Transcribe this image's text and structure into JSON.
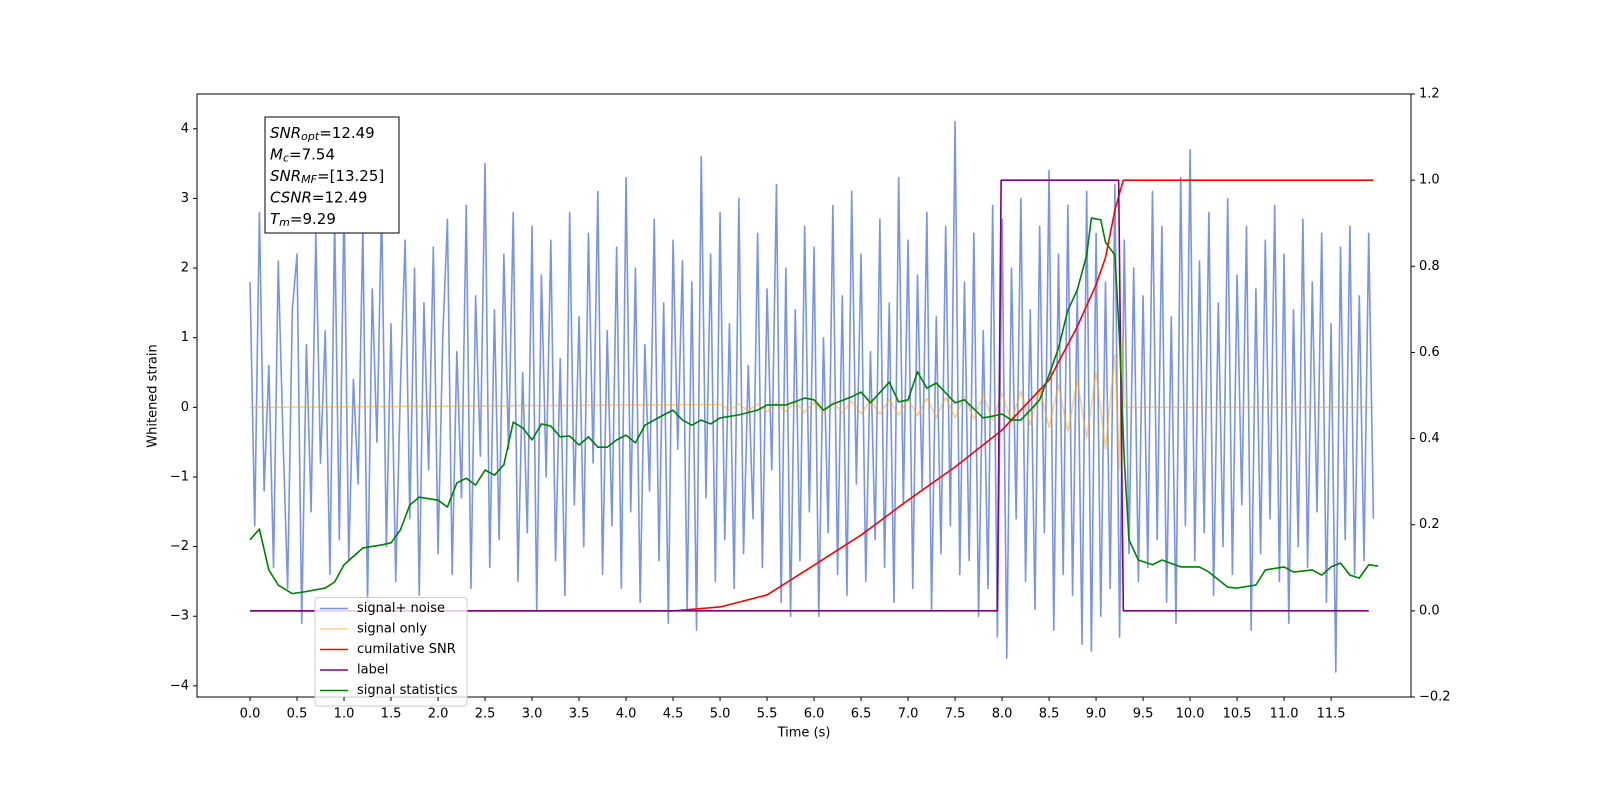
{
  "chart_data": {
    "type": "line",
    "xlabel": "Time (s)",
    "ylabel": "Whitened strain",
    "xlim": [
      -0.564,
      12.35
    ],
    "ylim": [
      -4.16,
      4.5
    ],
    "y2lim": [
      -0.2,
      1.2
    ],
    "xticks": [
      {
        "value": 0,
        "label": "0.0"
      },
      0.5,
      {
        "value": 1,
        "label": "1.0"
      },
      1.5,
      {
        "value": 2,
        "label": "2.0"
      },
      2.5,
      {
        "value": 3,
        "label": "3.0"
      },
      3.5,
      {
        "value": 4,
        "label": "4.0"
      },
      4.5,
      {
        "value": 5,
        "label": "5.0"
      },
      5.5,
      {
        "value": 6,
        "label": "6.0"
      },
      6.5,
      {
        "value": 7,
        "label": "7.0"
      },
      7.5,
      {
        "value": 8,
        "label": "8.0"
      },
      8.5,
      {
        "value": 9,
        "label": "9.0"
      },
      9.5,
      {
        "value": 10,
        "label": "10.0"
      },
      10.5,
      {
        "value": 11,
        "label": "11.0"
      },
      11.5
    ],
    "yticks": [
      {
        "value": -4,
        "label": "−4"
      },
      {
        "value": -3,
        "label": "−3"
      },
      {
        "value": -2,
        "label": "−2"
      },
      {
        "value": -1,
        "label": "−1"
      },
      0,
      1,
      2,
      3,
      4
    ],
    "y2ticks": [
      {
        "value": -0.2,
        "label": "−0.2"
      },
      {
        "value": 0,
        "label": "0.0"
      },
      0.2,
      0.4,
      0.6,
      0.8,
      {
        "value": 1,
        "label": "1.0"
      },
      1.2
    ],
    "legend_loc": "lower left",
    "annotation": [
      {
        "symbol": "SNR",
        "subscript": "opt",
        "text": "=12.49"
      },
      {
        "symbol": "M",
        "subscript": "c",
        "text": "=7.54"
      },
      {
        "symbol": "SNR",
        "subscript": "MF",
        "text": "=[13.25]"
      },
      {
        "symbol": "CSNR",
        "text": "=12.49"
      },
      {
        "symbol": "T",
        "subscript": "m",
        "text": "=9.29"
      }
    ],
    "series": [
      {
        "name": "signal+ noise",
        "color": "#7893e8",
        "opacity": 1,
        "x": [
          0,
          0.05,
          0.1,
          0.15,
          0.2,
          0.25,
          0.3,
          0.35,
          0.4,
          0.45,
          0.5,
          0.55,
          0.6,
          0.65,
          0.7,
          0.75,
          0.8,
          0.85,
          0.9,
          0.95,
          1,
          1.05,
          1.1,
          1.15,
          1.2,
          1.25,
          1.3,
          1.35,
          1.4,
          1.45,
          1.5,
          1.55,
          1.6,
          1.65,
          1.7,
          1.75,
          1.8,
          1.85,
          1.9,
          1.95,
          2,
          2.05,
          2.1,
          2.15,
          2.2,
          2.25,
          2.3,
          2.35,
          2.4,
          2.45,
          2.5,
          2.55,
          2.6,
          2.65,
          2.7,
          2.75,
          2.8,
          2.85,
          2.9,
          2.95,
          3,
          3.05,
          3.1,
          3.15,
          3.2,
          3.25,
          3.3,
          3.35,
          3.4,
          3.45,
          3.5,
          3.55,
          3.6,
          3.65,
          3.7,
          3.75,
          3.8,
          3.85,
          3.9,
          3.95,
          4,
          4.05,
          4.1,
          4.15,
          4.2,
          4.25,
          4.3,
          4.35,
          4.4,
          4.45,
          4.5,
          4.55,
          4.6,
          4.65,
          4.7,
          4.75,
          4.8,
          4.85,
          4.9,
          4.95,
          5,
          5.05,
          5.1,
          5.15,
          5.2,
          5.25,
          5.3,
          5.35,
          5.4,
          5.45,
          5.5,
          5.55,
          5.6,
          5.65,
          5.7,
          5.75,
          5.8,
          5.85,
          5.9,
          5.95,
          6,
          6.05,
          6.1,
          6.15,
          6.2,
          6.25,
          6.3,
          6.35,
          6.4,
          6.45,
          6.5,
          6.55,
          6.6,
          6.65,
          6.7,
          6.75,
          6.8,
          6.85,
          6.9,
          6.95,
          7,
          7.05,
          7.1,
          7.15,
          7.2,
          7.25,
          7.3,
          7.35,
          7.4,
          7.45,
          7.5,
          7.55,
          7.6,
          7.65,
          7.7,
          7.75,
          7.8,
          7.85,
          7.9,
          7.95,
          8,
          8.05,
          8.1,
          8.15,
          8.2,
          8.25,
          8.3,
          8.35,
          8.4,
          8.45,
          8.5,
          8.55,
          8.6,
          8.65,
          8.7,
          8.75,
          8.8,
          8.85,
          8.9,
          8.95,
          9,
          9.05,
          9.1,
          9.15,
          9.2,
          9.25,
          9.3,
          9.35,
          9.4,
          9.45,
          9.5,
          9.55,
          9.6,
          9.65,
          9.7,
          9.75,
          9.8,
          9.85,
          9.9,
          9.95,
          10,
          10.05,
          10.1,
          10.15,
          10.2,
          10.25,
          10.3,
          10.35,
          10.4,
          10.45,
          10.5,
          10.55,
          10.6,
          10.65,
          10.7,
          10.75,
          10.8,
          10.85,
          10.9,
          10.95,
          11,
          11.05,
          11.1,
          11.15,
          11.2,
          11.25,
          11.3,
          11.35,
          11.4,
          11.45,
          11.5,
          11.55,
          11.6,
          11.65,
          11.7,
          11.75,
          11.8,
          11.85,
          11.9,
          11.95
        ],
        "values": [
          1.8,
          -1.7,
          2.8,
          -1.2,
          0.6,
          -2.3,
          2.1,
          -0.4,
          -2.6,
          1.4,
          2.2,
          -3.1,
          0.9,
          -1.5,
          2.5,
          -0.8,
          1.1,
          -2.4,
          2.7,
          -1.9,
          3.0,
          -2.2,
          0.4,
          -1.1,
          2.6,
          -2.8,
          1.7,
          -0.5,
          2.9,
          -2.0,
          1.2,
          -2.5,
          0.3,
          2.4,
          -1.6,
          2.0,
          -2.7,
          1.5,
          -0.9,
          2.3,
          -2.1,
          1.0,
          2.7,
          -2.4,
          0.8,
          -1.3,
          2.9,
          -2.6,
          1.6,
          -0.7,
          3.5,
          -2.3,
          1.4,
          -1.9,
          2.2,
          -0.6,
          2.8,
          -2.5,
          0.5,
          -1.8,
          2.6,
          -2.9,
          1.9,
          -1.0,
          2.4,
          -2.2,
          0.7,
          -2.7,
          2.8,
          -1.4,
          1.3,
          -2.0,
          2.5,
          -0.8,
          3.1,
          -2.4,
          1.1,
          -1.7,
          2.3,
          -2.6,
          3.3,
          -1.5,
          2.0,
          -2.8,
          0.9,
          -1.2,
          2.7,
          -2.2,
          1.5,
          -3.1,
          2.4,
          -0.6,
          2.1,
          -2.9,
          1.8,
          -3.2,
          3.6,
          -1.3,
          2.2,
          -2.5,
          2.8,
          -1.9,
          1.2,
          -2.6,
          3.0,
          -2.1,
          0.6,
          -1.6,
          2.5,
          -2.3,
          1.7,
          -0.9,
          3.2,
          -2.8,
          2.0,
          -3.0,
          1.4,
          -2.2,
          2.6,
          -1.5,
          2.3,
          -3.0,
          1.0,
          -1.8,
          2.9,
          -2.4,
          1.6,
          -2.7,
          3.1,
          -1.1,
          2.2,
          -2.5,
          0.8,
          -1.9,
          2.7,
          -2.3,
          1.5,
          -2.8,
          3.3,
          -1.4,
          2.4,
          -2.6,
          1.9,
          -1.2,
          2.8,
          -2.9,
          1.3,
          -2.1,
          2.6,
          -1.7,
          4.1,
          -2.4,
          1.8,
          -2.2,
          2.5,
          -3.0,
          1.1,
          -2.6,
          2.9,
          -3.3,
          2.7,
          -3.6,
          2.0,
          -1.6,
          3.0,
          -2.5,
          1.4,
          -2.9,
          2.6,
          -1.8,
          3.4,
          -3.2,
          2.2,
          -2.4,
          2.9,
          -2.7,
          1.7,
          -3.4,
          3.1,
          -3.5,
          2.5,
          -3.0,
          1.8,
          -2.6,
          3.2,
          -3.3,
          2.4,
          -2.1,
          2.0,
          -2.5,
          1.6,
          -2.3,
          3.1,
          -1.9,
          2.6,
          -2.8,
          1.3,
          -3.1,
          3.3,
          -1.7,
          3.7,
          -2.2,
          2.1,
          -1.8,
          2.8,
          -2.7,
          1.5,
          -2.0,
          3.0,
          -2.4,
          1.9,
          -1.4,
          2.6,
          -3.2,
          1.7,
          -2.1,
          2.4,
          -1.6,
          2.9,
          -2.5,
          2.2,
          -3.1,
          1.4,
          -2.0,
          2.7,
          -2.3,
          1.8,
          -1.5,
          2.5,
          -2.8,
          1.2,
          -3.8,
          2.3,
          -1.9,
          2.6,
          -2.4,
          1.6,
          -2.2,
          2.5,
          -1.6
        ]
      },
      {
        "name": "signal only",
        "color": "#ffa500",
        "opacity": 0.5,
        "x": [
          0,
          5.0,
          5.1,
          5.2,
          5.3,
          5.4,
          5.5,
          5.6,
          5.7,
          5.8,
          5.9,
          6.0,
          6.1,
          6.2,
          6.3,
          6.4,
          6.5,
          6.6,
          6.7,
          6.8,
          6.9,
          7.0,
          7.1,
          7.2,
          7.3,
          7.4,
          7.5,
          7.6,
          7.7,
          7.8,
          7.9,
          8.0,
          8.1,
          8.2,
          8.3,
          8.4,
          8.5,
          8.6,
          8.7,
          8.8,
          8.9,
          9.0,
          9.1,
          9.2,
          9.25,
          9.28,
          9.3,
          11.95
        ],
        "values": [
          0,
          0.04,
          -0.04,
          0.05,
          -0.05,
          0.05,
          -0.06,
          0.06,
          -0.06,
          0.07,
          -0.07,
          0.07,
          -0.08,
          0.08,
          -0.08,
          0.09,
          -0.09,
          0.1,
          -0.1,
          0.11,
          -0.11,
          0.12,
          -0.12,
          0.13,
          -0.14,
          0.14,
          -0.15,
          0.16,
          -0.17,
          0.18,
          -0.19,
          0.2,
          -0.21,
          0.23,
          -0.25,
          0.27,
          -0.29,
          0.32,
          -0.35,
          0.39,
          -0.44,
          0.5,
          -0.6,
          0.75,
          -0.9,
          1.0,
          0,
          0
        ]
      },
      {
        "name": "cumilative SNR",
        "color": "#ff0000",
        "opacity": 1,
        "axis": "y2",
        "x": [
          0,
          4.5,
          5.0,
          5.5,
          6.0,
          6.5,
          7.0,
          7.5,
          8.0,
          8.5,
          8.8,
          9.0,
          9.1,
          9.2,
          9.25,
          9.29,
          11.95
        ],
        "values": [
          0,
          0,
          0.009,
          0.037,
          0.106,
          0.176,
          0.257,
          0.334,
          0.42,
          0.536,
          0.66,
          0.757,
          0.82,
          0.93,
          0.97,
          1.0,
          1.0
        ]
      },
      {
        "name": "label",
        "color": "#800080",
        "opacity": 1,
        "axis": "y2",
        "x": [
          0,
          7.95,
          7.99,
          9.24,
          9.29,
          11.9
        ],
        "values": [
          0,
          0,
          1,
          1,
          0,
          0
        ]
      },
      {
        "name": "signal statistics",
        "color": "#008000",
        "opacity": 1,
        "axis": "y2",
        "x": [
          0,
          0.1,
          0.2,
          0.3,
          0.45,
          0.6,
          0.8,
          0.9,
          1.0,
          1.2,
          1.4,
          1.5,
          1.6,
          1.7,
          1.8,
          2.0,
          2.1,
          2.2,
          2.3,
          2.4,
          2.5,
          2.6,
          2.7,
          2.8,
          2.9,
          3.0,
          3.1,
          3.2,
          3.3,
          3.4,
          3.5,
          3.6,
          3.7,
          3.8,
          3.9,
          4.0,
          4.1,
          4.2,
          4.4,
          4.5,
          4.6,
          4.7,
          4.8,
          4.9,
          5.0,
          5.2,
          5.4,
          5.5,
          5.7,
          5.9,
          6.0,
          6.1,
          6.2,
          6.4,
          6.5,
          6.6,
          6.8,
          6.9,
          7.0,
          7.1,
          7.2,
          7.3,
          7.4,
          7.5,
          7.6,
          7.8,
          7.9,
          8.0,
          8.1,
          8.2,
          8.3,
          8.4,
          8.5,
          8.6,
          8.7,
          8.8,
          8.9,
          8.95,
          9.05,
          9.1,
          9.2,
          9.25,
          9.3,
          9.35,
          9.45,
          9.6,
          9.7,
          9.9,
          10.1,
          10.2,
          10.4,
          10.5,
          10.7,
          10.8,
          11.0,
          11.1,
          11.3,
          11.4,
          11.5,
          11.6,
          11.7,
          11.8,
          11.9,
          12.0
        ],
        "values": [
          0.165,
          0.19,
          0.095,
          0.06,
          0.04,
          0.045,
          0.053,
          0.067,
          0.107,
          0.146,
          0.153,
          0.158,
          0.188,
          0.246,
          0.264,
          0.257,
          0.241,
          0.297,
          0.308,
          0.292,
          0.327,
          0.315,
          0.339,
          0.438,
          0.425,
          0.397,
          0.434,
          0.429,
          0.404,
          0.406,
          0.385,
          0.404,
          0.38,
          0.38,
          0.397,
          0.408,
          0.39,
          0.431,
          0.455,
          0.466,
          0.443,
          0.431,
          0.443,
          0.434,
          0.448,
          0.455,
          0.466,
          0.478,
          0.478,
          0.494,
          0.49,
          0.466,
          0.48,
          0.497,
          0.508,
          0.483,
          0.531,
          0.485,
          0.49,
          0.555,
          0.517,
          0.529,
          0.506,
          0.483,
          0.49,
          0.448,
          0.452,
          0.457,
          0.443,
          0.443,
          0.466,
          0.49,
          0.548,
          0.61,
          0.698,
          0.745,
          0.826,
          0.912,
          0.908,
          0.856,
          0.826,
          0.629,
          0.35,
          0.165,
          0.118,
          0.107,
          0.118,
          0.102,
          0.102,
          0.09,
          0.055,
          0.053,
          0.06,
          0.095,
          0.102,
          0.09,
          0.095,
          0.083,
          0.102,
          0.111,
          0.083,
          0.076,
          0.107,
          0.104
        ]
      }
    ]
  }
}
